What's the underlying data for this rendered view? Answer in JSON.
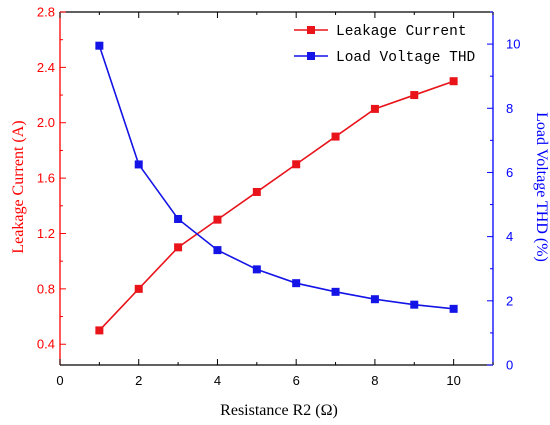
{
  "colors": {
    "left_axis": "#ff0000",
    "right_axis": "#0000ff",
    "axis": "#000000",
    "series_red": "#e8141a",
    "series_blue": "#1414e6"
  },
  "chart_data": {
    "type": "line",
    "xlabel": "Resistance R2 (Ω)",
    "ylabel_left": "Leakage Current (A)",
    "ylabel_right": "Load Voltage THD (%)",
    "xlim": [
      0,
      11
    ],
    "ylim_left": [
      0.25,
      2.8
    ],
    "ylim_right": [
      0,
      11
    ],
    "x_ticks": [
      0,
      2,
      4,
      6,
      8,
      10
    ],
    "y_left_ticks": [
      0.4,
      0.8,
      1.2,
      1.6,
      2.0,
      2.4,
      2.8
    ],
    "y_left_tick_labels": [
      "0.4",
      "0.8",
      "1.2",
      "1.6",
      "2.0",
      "2.4",
      "2.8"
    ],
    "y_right_ticks": [
      0,
      2,
      4,
      6,
      8,
      10
    ],
    "grid": false,
    "legend_position": "top-right",
    "x": [
      1,
      2,
      3,
      4,
      5,
      6,
      7,
      8,
      9,
      10
    ],
    "series": [
      {
        "name": "Leakage Current",
        "axis": "left",
        "marker": "square",
        "color": "#e8141a",
        "values": [
          0.5,
          0.8,
          1.1,
          1.3,
          1.5,
          1.7,
          1.9,
          2.1,
          2.2,
          2.3
        ]
      },
      {
        "name": "Load Voltage THD",
        "axis": "right",
        "marker": "square",
        "color": "#1414e6",
        "values": [
          9.95,
          6.25,
          4.55,
          3.58,
          2.98,
          2.55,
          2.28,
          2.05,
          1.88,
          1.75
        ]
      }
    ]
  }
}
